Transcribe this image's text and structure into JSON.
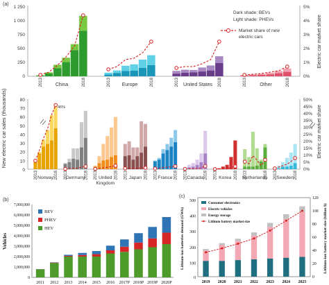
{
  "colors": {
    "china_bev": "#2e9b2e",
    "china_phev": "#7ac943",
    "europe_bev": "#1a97b8",
    "europe_phev": "#5fd0e6",
    "us_bev": "#6a3d8a",
    "us_phev": "#a889c4",
    "other_bev": "#e0506a",
    "other_phev": "#f4a0b0",
    "share": "#d42020",
    "norway_bev": "#e8a300",
    "norway_phev": "#fad860",
    "germany_bev": "#808080",
    "germany_phev": "#c8c8c8",
    "uk_bev": "#f28c1c",
    "uk_phev": "#fcc890",
    "japan_bev": "#8a5050",
    "japan_phev": "#d0a8a8",
    "france_bev": "#1c84c4",
    "france_phev": "#8cc8ea",
    "canada_bev": "#a882c6",
    "canada_phev": "#dcc8ea",
    "korea_bev": "#d03030",
    "korea_phev": "#f0a0a0",
    "netherlands_bev": "#5cae3c",
    "netherlands_phev": "#b0dc90",
    "sweden_bev": "#38b8d8",
    "sweden_phev": "#a8e4f2",
    "b_bev": "#2f75b5",
    "b_phev": "#d62728",
    "b_hev": "#4e9a2a",
    "c_cons": "#1f6f80",
    "c_ev": "#f4a8b4",
    "c_storage": "#c0c0c0",
    "c_market": "#d62020"
  },
  "panel_a": {
    "label": "(a)",
    "y_label": "New electric car sales (thousands)",
    "y2_label": "Electric car market share",
    "legend_lines": [
      "Dark shade: BEVs",
      "Light shade: PHEVs",
      "Market share of new",
      "electric cars"
    ],
    "top": {
      "yticks": [
        "1 250",
        "1 000",
        "750",
        "500",
        "250",
        "0"
      ],
      "y2ticks": [
        "5%",
        "4%",
        "3%",
        "2%",
        "1%",
        "0%"
      ],
      "chart_data": {
        "type": "bar",
        "ylim": [
          0,
          1250
        ],
        "y2lim": [
          0,
          5
        ],
        "groups": [
          {
            "name": "China",
            "key": "china",
            "years": [
              "2013",
              "2014",
              "2015",
              "2016",
              "2017",
              "2018"
            ],
            "bev": [
              15,
              50,
              145,
              255,
              470,
              820
            ],
            "phev": [
              3,
              20,
              63,
              80,
              110,
              270
            ],
            "share": [
              0.1,
              0.3,
              0.8,
              1.4,
              2.2,
              4.4
            ]
          },
          {
            "name": "Europe",
            "key": "europe",
            "years": [
              "2013",
              "2014",
              "2015",
              "2016",
              "2017",
              "2018"
            ],
            "bev": [
              30,
              60,
              95,
              100,
              150,
              200
            ],
            "phev": [
              35,
              45,
              95,
              115,
              150,
              180
            ],
            "share": [
              0.5,
              0.7,
              1.2,
              1.3,
              1.7,
              2.5
            ]
          },
          {
            "name": "United States",
            "key": "us",
            "years": [
              "2013",
              "2014",
              "2015",
              "2016",
              "2017",
              "2018"
            ],
            "bev": [
              48,
              63,
              72,
              86,
              104,
              238
            ],
            "phev": [
              49,
              55,
              42,
              72,
              91,
              123
            ],
            "share": [
              0.6,
              0.7,
              0.7,
              0.9,
              1.2,
              2.5
            ]
          },
          {
            "name": "Other",
            "key": "other",
            "years": [
              "2013",
              "2014",
              "2015",
              "2016",
              "2017",
              "2018"
            ],
            "bev": [
              15,
              20,
              25,
              35,
              55,
              80
            ],
            "phev": [
              8,
              12,
              20,
              30,
              40,
              60
            ],
            "share": [
              0.1,
              0.15,
              0.2,
              0.3,
              0.4,
              0.7
            ]
          }
        ]
      }
    },
    "bottom": {
      "yticks": [
        "80",
        "70",
        "60",
        "50",
        "40",
        "30",
        "20",
        "10",
        "0"
      ],
      "y2ticks": [
        "50%",
        "45%",
        "40%",
        "35%",
        "30%",
        "25%",
        "20%",
        "15%",
        "10%",
        "5%",
        "0%"
      ],
      "annotation": "46%",
      "chart_data": {
        "type": "bar",
        "ylim": [
          0,
          80
        ],
        "y2lim": [
          0,
          50
        ],
        "groups": [
          {
            "name": "Norway",
            "key": "norway",
            "years": [
              "2013",
              "2014",
              "2015",
              "2016",
              "2017",
              "2018"
            ],
            "bev": [
              8,
              18,
              26,
              29,
              33,
              47
            ],
            "phev": [
              1,
              2,
              8,
              16,
              29,
              25
            ],
            "share": [
              6,
              13.5,
              22,
              29,
              39,
              46
            ]
          },
          {
            "name": "Germany",
            "key": "germany",
            "years": [
              "2013",
              "2014",
              "2015",
              "2016",
              "2017",
              "2018"
            ],
            "bev": [
              6,
              8,
              12,
              11,
              25,
              36
            ],
            "phev": [
              1,
              4,
              12,
              13,
              29,
              31
            ],
            "share": [
              0.2,
              0.4,
              0.7,
              0.7,
              1.6,
              2.0
            ]
          },
          {
            "name": "United Kingdom",
            "key": "uk",
            "years": [
              "2013",
              "2014",
              "2015",
              "2016",
              "2017",
              "2018"
            ],
            "bev": [
              3,
              7,
              10,
              11,
              14,
              16
            ],
            "phev": [
              1,
              8,
              19,
              27,
              34,
              44
            ],
            "share": [
              0.2,
              0.6,
              1.0,
              1.4,
              1.8,
              2.5
            ]
          },
          {
            "name": "Japan",
            "key": "japan",
            "years": [
              "2013",
              "2014",
              "2015",
              "2016",
              "2017",
              "2018"
            ],
            "bev": [
              15,
              16,
              11,
              15,
              19,
              26
            ],
            "phev": [
              14,
              16,
              14,
              10,
              36,
              26
            ],
            "share": [
              0.6,
              0.7,
              0.6,
              0.6,
              1.0,
              1.0
            ]
          },
          {
            "name": "France",
            "key": "france",
            "years": [
              "2013",
              "2014",
              "2015",
              "2016",
              "2017",
              "2018"
            ],
            "bev": [
              9,
              11,
              18,
              22,
              26,
              31
            ],
            "phev": [
              1,
              2,
              5,
              7,
              10,
              14
            ],
            "share": [
              0.5,
              0.6,
              1.2,
              1.5,
              1.7,
              2.1
            ]
          },
          {
            "name": "Canada",
            "key": "canada",
            "years": [
              "2013",
              "2014",
              "2015",
              "2016",
              "2017",
              "2018"
            ],
            "bev": [
              1,
              2,
              3,
              5,
              8,
              18
            ],
            "phev": [
              1,
              3,
              4,
              6,
              10,
              26
            ],
            "share": [
              0.2,
              0.3,
              0.4,
              0.6,
              0.9,
              2.2
            ]
          },
          {
            "name": "Korea",
            "key": "korea",
            "years": [
              "2013",
              "2014",
              "2015",
              "2016",
              "2017",
              "2018"
            ],
            "bev": [
              1,
              1,
              3,
              5,
              14,
              33
            ],
            "phev": [
              0,
              0,
              0,
              0,
              0,
              0
            ],
            "share": [
              0.1,
              0.2,
              0.3,
              0.4,
              1.2,
              2.0
            ]
          },
          {
            "name": "Netherlands",
            "key": "netherlands",
            "years": [
              "2013",
              "2014",
              "2015",
              "2016",
              "2017",
              "2018"
            ],
            "bev": [
              3,
              3,
              3,
              4,
              9,
              25
            ],
            "phev": [
              20,
              11,
              40,
              20,
              2,
              4
            ],
            "share": [
              5.4,
              3.9,
              9.7,
              6.4,
              2.6,
              6.7
            ]
          },
          {
            "name": "Sweden",
            "key": "sweden",
            "years": [
              "2013",
              "2014",
              "2015",
              "2016",
              "2017",
              "2018"
            ],
            "bev": [
              0.5,
              1,
              3,
              3,
              4,
              7
            ],
            "phev": [
              0.5,
              3,
              5,
              10,
              15,
              22
            ],
            "share": [
              0.6,
              1.5,
              2.6,
              3.5,
              5.5,
              8.0
            ]
          }
        ]
      }
    }
  },
  "panel_b": {
    "label": "(b)",
    "y_label": "Vehicles",
    "yticks": [
      "7,000,000",
      "6,000,000",
      "5,000,000",
      "4,000,000",
      "3,000,000",
      "2,000,000",
      "1,000,000",
      "0"
    ],
    "legend": [
      "BEV",
      "PHEV",
      "HEV"
    ],
    "chart_data": {
      "type": "bar",
      "stacked": true,
      "ylim": [
        0,
        7000000
      ],
      "categories": [
        "2011",
        "2012",
        "2013",
        "2014",
        "2015",
        "2016",
        "2017P",
        "2018P",
        "2019P",
        "2020P"
      ],
      "series": [
        {
          "name": "HEV",
          "values": [
            780000,
            1380000,
            2000000,
            2000000,
            2000000,
            2300000,
            2450000,
            2700000,
            2900000,
            3200000
          ]
        },
        {
          "name": "PHEV",
          "values": [
            10000,
            40000,
            70000,
            150000,
            230000,
            300000,
            500000,
            650000,
            850000,
            1100000
          ]
        },
        {
          "name": "BEV",
          "values": [
            10000,
            30000,
            100000,
            200000,
            300000,
            450000,
            700000,
            900000,
            1100000,
            1500000
          ]
        }
      ]
    }
  },
  "panel_c": {
    "label": "(c)",
    "y_label": "Lithium-ion batteries demand (GWh)",
    "y2_label": "Lithium-ion battery market size (billion $)",
    "yticks": [
      "500",
      "400",
      "300",
      "200",
      "100",
      "0"
    ],
    "y2ticks": [
      "120",
      "100",
      "80",
      "60",
      "40",
      "20",
      "0"
    ],
    "legend": [
      "Consumer electronics",
      "Electric vehicles",
      "Energy storage",
      "Lithium battery market size"
    ],
    "chart_data": {
      "type": "bar",
      "stacked": true,
      "ylim": [
        0,
        500
      ],
      "y2lim": [
        0,
        120
      ],
      "categories": [
        "2019",
        "2020",
        "2021",
        "2022",
        "2023",
        "2024",
        "2025"
      ],
      "series": [
        {
          "name": "Consumer electronics",
          "values": [
            100,
            100,
            105,
            110,
            115,
            120,
            125
          ]
        },
        {
          "name": "Electric vehicles",
          "values": [
            65,
            100,
            120,
            150,
            200,
            245,
            285
          ]
        },
        {
          "name": "Energy storage",
          "values": [
            10,
            12,
            15,
            20,
            25,
            30,
            35
          ]
        },
        {
          "name": "Lithium battery market size",
          "axis": "y2",
          "values": [
            37,
            43,
            50,
            58,
            70,
            85,
            100
          ]
        }
      ]
    }
  }
}
